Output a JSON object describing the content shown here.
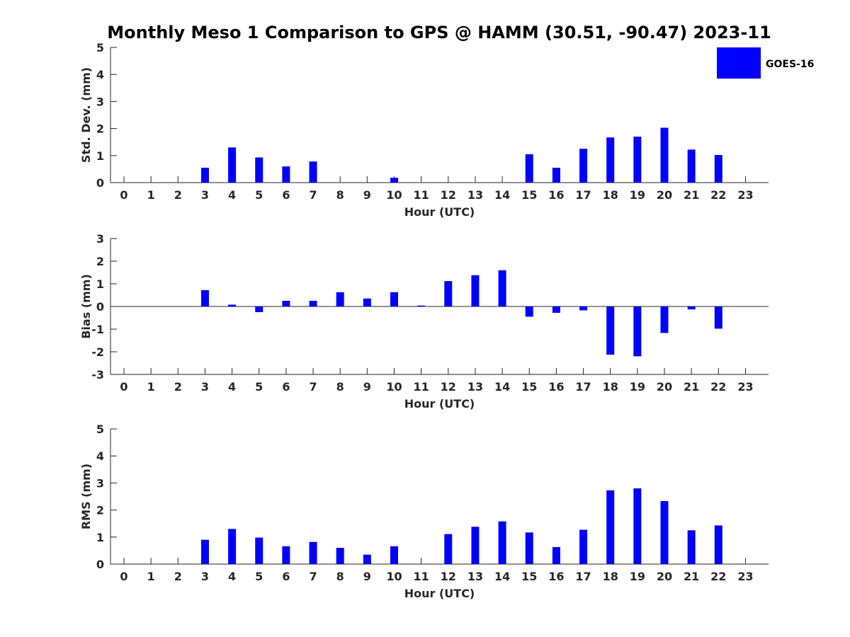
{
  "title": "Monthly Meso 1 Comparison to GPS @ HAMM (30.51, -90.47) 2023-11",
  "bar_color": "#0000ff",
  "legend": {
    "label": "GOES-16",
    "placement": "top-right"
  },
  "chart_data": [
    {
      "type": "bar",
      "name": "std",
      "xlabel": "Hour (UTC)",
      "ylabel": "Std. Dev. (mm)",
      "ylim": [
        0,
        5
      ],
      "yticks": [
        0,
        1,
        2,
        3,
        4,
        5
      ],
      "categories": [
        "0",
        "1",
        "2",
        "3",
        "4",
        "5",
        "6",
        "7",
        "8",
        "9",
        "10",
        "11",
        "12",
        "13",
        "14",
        "15",
        "16",
        "17",
        "18",
        "19",
        "20",
        "21",
        "22",
        "23"
      ],
      "series": [
        {
          "name": "GOES-16",
          "values": [
            null,
            null,
            null,
            0.55,
            1.3,
            0.93,
            0.6,
            0.78,
            0,
            0,
            0.18,
            null,
            0,
            0,
            0,
            1.05,
            0.55,
            1.25,
            1.67,
            1.7,
            2.03,
            1.22,
            1.02,
            null
          ]
        }
      ]
    },
    {
      "type": "bar",
      "name": "bias",
      "xlabel": "Hour (UTC)",
      "ylabel": "Bias (mm)",
      "ylim": [
        -3,
        3
      ],
      "yticks": [
        -3,
        -2,
        -1,
        0,
        1,
        2,
        3
      ],
      "zero_line": true,
      "categories": [
        "0",
        "1",
        "2",
        "3",
        "4",
        "5",
        "6",
        "7",
        "8",
        "9",
        "10",
        "11",
        "12",
        "13",
        "14",
        "15",
        "16",
        "17",
        "18",
        "19",
        "20",
        "21",
        "22",
        "23"
      ],
      "series": [
        {
          "name": "GOES-16",
          "values": [
            null,
            null,
            null,
            0.72,
            0.08,
            -0.25,
            0.25,
            0.25,
            0.63,
            0.35,
            0.63,
            0.04,
            1.12,
            1.38,
            1.6,
            -0.45,
            -0.28,
            -0.17,
            -2.13,
            -2.2,
            -1.17,
            -0.13,
            -0.98,
            null
          ]
        }
      ]
    },
    {
      "type": "bar",
      "name": "rms",
      "xlabel": "Hour (UTC)",
      "ylabel": "RMS (mm)",
      "ylim": [
        0,
        5
      ],
      "yticks": [
        0,
        1,
        2,
        3,
        4,
        5
      ],
      "categories": [
        "0",
        "1",
        "2",
        "3",
        "4",
        "5",
        "6",
        "7",
        "8",
        "9",
        "10",
        "11",
        "12",
        "13",
        "14",
        "15",
        "16",
        "17",
        "18",
        "19",
        "20",
        "21",
        "22",
        "23"
      ],
      "series": [
        {
          "name": "GOES-16",
          "values": [
            null,
            null,
            null,
            0.9,
            1.3,
            0.98,
            0.66,
            0.82,
            0.6,
            0.35,
            0.66,
            null,
            1.11,
            1.38,
            1.58,
            1.17,
            0.63,
            1.27,
            2.73,
            2.8,
            2.33,
            1.25,
            1.43,
            null
          ]
        }
      ]
    }
  ]
}
